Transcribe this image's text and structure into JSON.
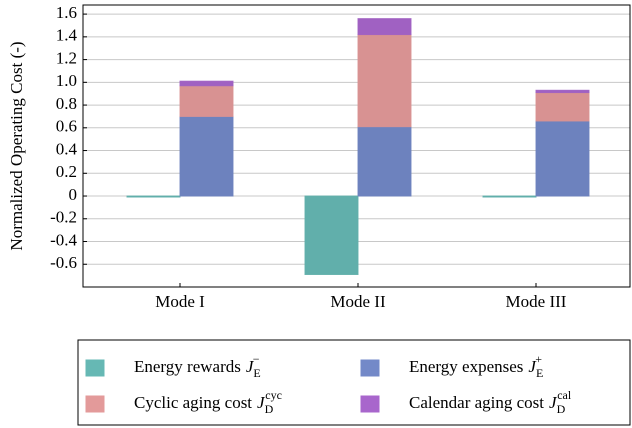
{
  "chart_data": {
    "type": "bar",
    "ylabel": "Normalized Operating Cost (-)",
    "categories": [
      "Mode I",
      "Mode II",
      "Mode III"
    ],
    "series": [
      {
        "name": "Energy rewards",
        "symbol": {
          "base": "J",
          "sub": "E",
          "sup": "−"
        },
        "color": "#66b8b4",
        "stack": "left",
        "values": [
          -0.005,
          -0.69,
          -0.005
        ]
      },
      {
        "name": "Energy expenses",
        "symbol": {
          "base": "J",
          "sub": "E",
          "sup": "+"
        },
        "color": "#7389c8",
        "stack": "right",
        "values": [
          0.7,
          0.61,
          0.66
        ]
      },
      {
        "name": "Cyclic aging cost",
        "symbol": {
          "base": "J",
          "sub": "D",
          "sup": "cyc"
        },
        "color": "#e39a9a",
        "stack": "right",
        "values": [
          0.27,
          0.81,
          0.25
        ]
      },
      {
        "name": "Calendar aging cost",
        "symbol": {
          "base": "J",
          "sub": "D",
          "sup": "cal"
        },
        "color": "#a866cc",
        "stack": "right",
        "values": [
          0.04,
          0.14,
          0.02
        ]
      }
    ],
    "ylim": [
      -0.8,
      1.68
    ],
    "yticks": [
      -0.6,
      -0.4,
      -0.2,
      0,
      0.2,
      0.4,
      0.6,
      0.8,
      {
        "value": 1,
        "label": "1.0"
      },
      1.2,
      1.4,
      1.6
    ],
    "grid": true
  }
}
